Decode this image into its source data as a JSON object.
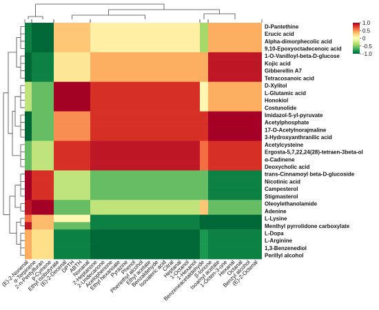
{
  "chart_data": {
    "type": "heatmap",
    "title": "",
    "xlabel": "",
    "ylabel": "",
    "legend": {
      "position": "top-right",
      "range": [
        -1.0,
        1.0
      ],
      "ticks": [
        "1.0",
        "0.5",
        "0",
        "-0.5",
        "-1.0"
      ],
      "tick_values": [
        1.0,
        0.5,
        0,
        -0.5,
        -1.0
      ],
      "colors": [
        "#006837",
        "#1a9850",
        "#66bd63",
        "#a6d96a",
        "#d9ef8b",
        "#ffffbf",
        "#fee08b",
        "#fdae61",
        "#f46d43",
        "#d73027",
        "#a50026"
      ]
    },
    "rows": [
      "D-Pantethine",
      "Erucic acid",
      "Alpha-dimorphecolic acid",
      "9,10-Epoxyoctadecenoic acid",
      "1-O-Vanilloyl-beta-D-glucose",
      "Kojic acid",
      "Gibberellin A7",
      "Tetracosanoic acid",
      "D-Xylitol",
      "L-Glutamic acid",
      "Honokiol",
      "Costunolide",
      "Imidazol-5-yl-pyruvate",
      "Acetylphosphate",
      "17-O-Acetylnorajmaline",
      "3-Hydroxyanthranilic acid",
      "Acetylcysteine",
      "Ergosta-5,7,22,24(28)-tetraen-3beta-ol",
      "α-Cadinene",
      "Deoxycholic acid",
      "trans-Cinnamoyl beta-D-glucoside",
      "Nicotinic acid",
      "Campesterol",
      "Stigmasterol",
      "Oleoylethanolamide",
      "Adenine",
      "L-Lysine",
      "Menthyl pyrrolidone carboxylate",
      "L-Dopa",
      "L-Arginine",
      "1,3-Benzenediol",
      "Perillyl alcohol"
    ],
    "columns": [
      "(E)-2-Nonenal",
      "α-Terpinene",
      "2-n-Pentylfuran",
      "p-Cymene",
      "Ethyl isobutyrate",
      "(E)-2-Decenal",
      "DPTH",
      "ABTH",
      "Nonanal",
      "2-Heptanone",
      "2-Undecanone",
      "Acetophenone",
      "Ethyl hexanoate",
      "Pyrazine",
      "Phenol",
      "Phenethyl alcohol",
      "Ethyl acetate",
      "Benzaldehyde",
      "Isovaleric acid",
      "Citral",
      "Heptanal",
      "1-Octanol",
      "1-Hexanol",
      "Benzeneacetaldehyde",
      "β-Ionone",
      "Isoamyl acetate",
      "1-Octen-3-one",
      "Hexanal",
      "Octanal",
      "Benzyl alcohol",
      "(E)-2-Octenal"
    ],
    "column_blocks": [
      {
        "id": "A",
        "count": 1
      },
      {
        "id": "B",
        "count": 3
      },
      {
        "id": "C",
        "count": 5
      },
      {
        "id": "D",
        "count": 12
      },
      {
        "id": "E",
        "count": 1
      },
      {
        "id": "F",
        "count": 9
      }
    ],
    "block_values": [
      [
        -0.9,
        -1.0,
        0.3,
        0.1,
        -0.4,
        0.4
      ],
      [
        -0.9,
        -1.0,
        0.3,
        0.1,
        -0.4,
        0.4
      ],
      [
        -0.9,
        -1.0,
        0.3,
        0.1,
        -0.4,
        0.4
      ],
      [
        -0.9,
        -1.0,
        0.3,
        0.1,
        -0.4,
        0.4
      ],
      [
        -1.0,
        -0.9,
        0.15,
        0.4,
        0.4,
        0.9
      ],
      [
        -1.0,
        -0.9,
        0.15,
        0.4,
        0.4,
        0.9
      ],
      [
        -1.0,
        -0.9,
        0.15,
        0.4,
        0.4,
        0.9
      ],
      [
        -1.0,
        -0.9,
        0.15,
        0.4,
        0.4,
        0.9
      ],
      [
        -0.3,
        -0.6,
        1.0,
        0.8,
        0.05,
        0.4
      ],
      [
        -0.3,
        -0.6,
        1.0,
        0.8,
        0.05,
        0.4
      ],
      [
        -0.3,
        -0.6,
        1.0,
        0.8,
        0.05,
        0.4
      ],
      [
        -0.3,
        -0.6,
        1.0,
        0.8,
        0.05,
        0.4
      ],
      [
        -1.0,
        -0.6,
        0.5,
        0.8,
        0.8,
        1.0
      ],
      [
        -1.0,
        -0.6,
        0.5,
        0.8,
        0.8,
        1.0
      ],
      [
        -1.0,
        -0.6,
        0.5,
        0.8,
        0.8,
        1.0
      ],
      [
        -1.0,
        -0.6,
        0.5,
        0.8,
        0.8,
        1.0
      ],
      [
        -0.6,
        -0.3,
        0.8,
        0.9,
        0.6,
        0.8
      ],
      [
        -0.6,
        -0.3,
        0.8,
        0.9,
        0.6,
        0.8
      ],
      [
        -0.6,
        -0.3,
        0.8,
        0.9,
        0.6,
        0.8
      ],
      [
        -0.6,
        -0.3,
        0.8,
        0.9,
        0.6,
        0.8
      ],
      [
        1.0,
        0.8,
        -0.3,
        -0.6,
        -0.6,
        -0.9
      ],
      [
        1.0,
        0.8,
        -0.3,
        -0.6,
        -0.6,
        -0.9
      ],
      [
        1.0,
        0.8,
        -0.3,
        -0.6,
        -0.6,
        -0.9
      ],
      [
        1.0,
        0.8,
        -0.3,
        -0.6,
        -0.6,
        -0.9
      ],
      [
        0.9,
        1.0,
        -0.6,
        -0.3,
        0.3,
        -0.6
      ],
      [
        0.9,
        1.0,
        -0.6,
        -0.3,
        0.3,
        -0.6
      ],
      [
        0.6,
        0.35,
        0.05,
        -0.9,
        -1.0,
        -1.0
      ],
      [
        0.9,
        0.35,
        -0.6,
        -0.9,
        -1.0,
        -1.0
      ],
      [
        0.4,
        0.2,
        -0.9,
        -1.0,
        -0.8,
        -0.9
      ],
      [
        0.4,
        0.2,
        -0.9,
        -1.0,
        -0.8,
        -0.9
      ],
      [
        0.4,
        0.2,
        -0.9,
        -1.0,
        -0.8,
        -0.9
      ],
      [
        0.4,
        0.2,
        -0.9,
        -1.0,
        -0.8,
        -0.9
      ]
    ],
    "grid": false
  }
}
